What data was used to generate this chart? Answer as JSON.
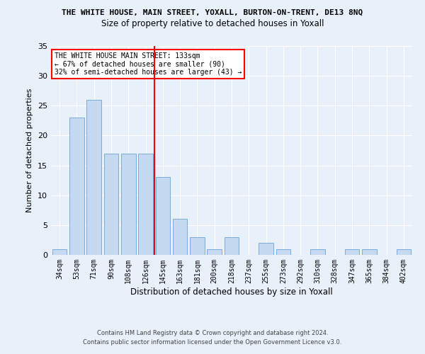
{
  "title": "THE WHITE HOUSE, MAIN STREET, YOXALL, BURTON-ON-TRENT, DE13 8NQ",
  "subtitle": "Size of property relative to detached houses in Yoxall",
  "xlabel": "Distribution of detached houses by size in Yoxall",
  "ylabel": "Number of detached properties",
  "categories": [
    "34sqm",
    "53sqm",
    "71sqm",
    "90sqm",
    "108sqm",
    "126sqm",
    "145sqm",
    "163sqm",
    "181sqm",
    "200sqm",
    "218sqm",
    "237sqm",
    "255sqm",
    "273sqm",
    "292sqm",
    "310sqm",
    "328sqm",
    "347sqm",
    "365sqm",
    "384sqm",
    "402sqm"
  ],
  "values": [
    1,
    23,
    26,
    17,
    17,
    17,
    13,
    6,
    3,
    1,
    3,
    0,
    2,
    1,
    0,
    1,
    0,
    1,
    1,
    0,
    1
  ],
  "bar_color": "#c5d9f0",
  "bar_edge_color": "#7AABDB",
  "background_color": "#e8f0fa",
  "grid_color": "#ffffff",
  "vline_color": "red",
  "annotation_title": "THE WHITE HOUSE MAIN STREET: 133sqm",
  "annotation_line1": "← 67% of detached houses are smaller (90)",
  "annotation_line2": "32% of semi-detached houses are larger (43) →",
  "annotation_box_color": "white",
  "annotation_border_color": "red",
  "ylim": [
    0,
    35
  ],
  "yticks": [
    0,
    5,
    10,
    15,
    20,
    25,
    30,
    35
  ],
  "footer1": "Contains HM Land Registry data © Crown copyright and database right 2024.",
  "footer2": "Contains public sector information licensed under the Open Government Licence v3.0."
}
